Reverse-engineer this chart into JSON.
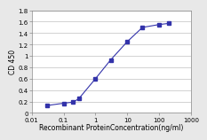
{
  "x": [
    0.03,
    0.1,
    0.2,
    0.3,
    1.0,
    3.0,
    10.0,
    30.0,
    100.0,
    200.0
  ],
  "y": [
    0.13,
    0.17,
    0.19,
    0.25,
    0.6,
    0.93,
    1.25,
    1.5,
    1.55,
    1.57
  ],
  "color": "#3333aa",
  "marker": "s",
  "markersize": 2.5,
  "linewidth": 0.8,
  "xlabel": "Recombinant ProteinConcentration(ng/ml)",
  "ylabel": "CD 450",
  "xlim": [
    0.01,
    1000
  ],
  "ylim": [
    0,
    1.8
  ],
  "yticks": [
    0,
    0.2,
    0.4,
    0.6,
    0.8,
    1.0,
    1.2,
    1.4,
    1.6,
    1.8
  ],
  "ytick_labels": [
    "0",
    "0.2",
    "0.4",
    "0.6",
    "0.8",
    "1",
    "1.2",
    "1.4",
    "1.6",
    "1.8"
  ],
  "xticks": [
    0.01,
    0.1,
    1,
    10,
    100,
    1000
  ],
  "xtick_labels": [
    "0.01",
    "0.1",
    "1",
    "10",
    "100",
    "1000"
  ],
  "xlabel_fontsize": 5.5,
  "ylabel_fontsize": 5.5,
  "tick_fontsize": 5.0,
  "figure_bg_color": "#e8e8e8",
  "plot_bg_color": "#ffffff",
  "grid_color": "#c0c0c0"
}
